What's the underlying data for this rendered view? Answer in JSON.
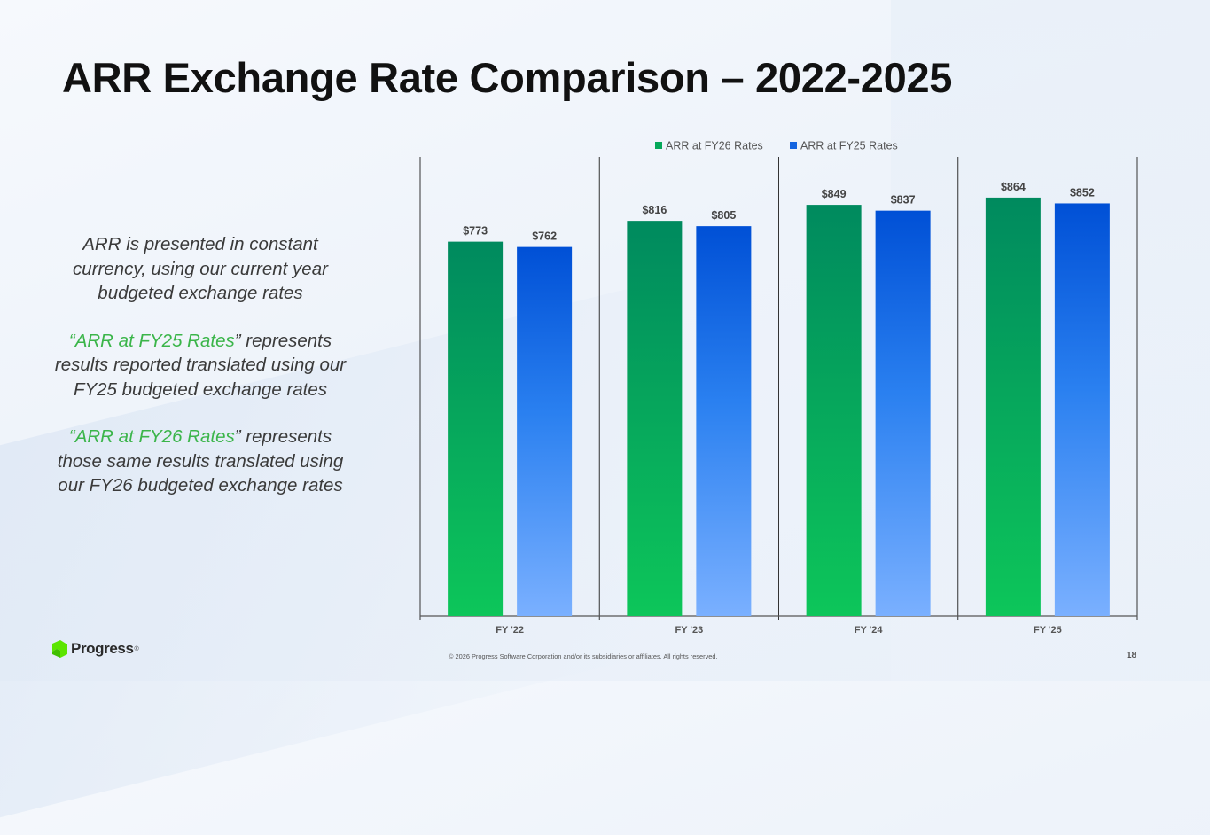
{
  "slide": {
    "title": "ARR Exchange Rate Comparison – 2022-2025",
    "page_number": "18",
    "copyright": "© 2026 Progress Software Corporation and/or its subsidiaries or affiliates. All rights reserved.",
    "logo_text": "Progress",
    "logo_mark": "®"
  },
  "side_text": {
    "p1": "ARR is presented in constant currency, using our current year budgeted exchange rates",
    "p2_quote_open": "“",
    "p2_highlight": "ARR at FY25 Rates",
    "p2_rest": "” represents results reported translated using our FY25 budgeted exchange rates",
    "p3_quote_open": "“",
    "p3_highlight": "ARR at FY26 Rates",
    "p3_rest": "” represents those same results translated using our FY26 budgeted exchange rates"
  },
  "chart_data": {
    "type": "bar",
    "categories": [
      "FY '22",
      "FY '23",
      "FY '24",
      "FY '25"
    ],
    "series": [
      {
        "name": "ARR at FY26 Rates",
        "values": [
          773,
          816,
          849,
          864
        ],
        "labels": [
          "$773",
          "$816",
          "$849",
          "$864"
        ],
        "color": "#06a85a"
      },
      {
        "name": "ARR at FY25 Rates",
        "values": [
          762,
          805,
          837,
          852
        ],
        "labels": [
          "$762",
          "$805",
          "$837",
          "$852"
        ],
        "color": "#1565e0"
      }
    ],
    "title": "",
    "xlabel": "",
    "ylabel": "",
    "ylim": [
      0,
      948
    ],
    "legend": "top",
    "grid": false
  },
  "colors": {
    "green_top": "#008a5e",
    "green_bottom": "#0dc65a",
    "blue_top": "#0050d6",
    "blue_bottom": "#7ab0ff",
    "highlight": "#3bb54a"
  }
}
